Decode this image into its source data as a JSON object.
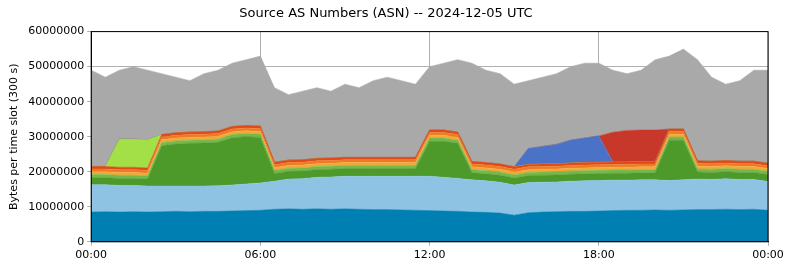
{
  "chart_data": {
    "type": "area",
    "stacked": true,
    "grid": true,
    "title": "Source AS Numbers (ASN) -- 2024-12-05 UTC",
    "y_label": "Bytes per time slot (300 s)",
    "xlim": [
      0,
      24
    ],
    "xticks": [
      {
        "value": 0,
        "label": "00:00"
      },
      {
        "value": 6,
        "label": "06:00"
      },
      {
        "value": 12,
        "label": "12:00"
      },
      {
        "value": 18,
        "label": "18:00"
      },
      {
        "value": 24,
        "label": "00:00"
      }
    ],
    "ylim": [
      0,
      60000000
    ],
    "yticks": [
      0,
      10000000,
      20000000,
      30000000,
      40000000,
      50000000,
      60000000
    ],
    "x": [
      0,
      0.5,
      1,
      1.5,
      2,
      2.5,
      3,
      3.5,
      4,
      4.5,
      5,
      5.5,
      6,
      6.5,
      7,
      7.5,
      8,
      8.5,
      9,
      9.5,
      10,
      10.5,
      11,
      11.5,
      12,
      12.5,
      13,
      13.5,
      14,
      14.5,
      15,
      15.5,
      16,
      16.5,
      17,
      17.5,
      18,
      18.5,
      19,
      19.5,
      20,
      20.5,
      21,
      21.5,
      22,
      22.5,
      23,
      23.5,
      24
    ],
    "series": [
      {
        "color": "#0080b2",
        "values": [
          8500000,
          8600000,
          8500000,
          8600000,
          8500000,
          8600000,
          8700000,
          8600000,
          8700000,
          8700000,
          8800000,
          8900000,
          9000000,
          9300000,
          9400000,
          9300000,
          9400000,
          9300000,
          9400000,
          9300000,
          9200000,
          9200000,
          9100000,
          9000000,
          8900000,
          8800000,
          8700000,
          8500000,
          8400000,
          8200000,
          7600000,
          8300000,
          8500000,
          8600000,
          8700000,
          8700000,
          8800000,
          8900000,
          9000000,
          9000000,
          9100000,
          9000000,
          9100000,
          9200000,
          9200000,
          9300000,
          9200000,
          9300000,
          9000000
        ]
      },
      {
        "color": "#8fc3e4",
        "values": [
          7800000,
          7700000,
          7600000,
          7500000,
          7400000,
          7300000,
          7200000,
          7300000,
          7200000,
          7300000,
          7400000,
          7600000,
          7800000,
          8000000,
          8500000,
          8700000,
          9000000,
          9200000,
          9300000,
          9400000,
          9500000,
          9500000,
          9600000,
          9700000,
          9800000,
          9600000,
          9400000,
          9200000,
          9000000,
          8800000,
          8600000,
          8600000,
          8500000,
          8500000,
          8600000,
          8700000,
          8700000,
          8700000,
          8600000,
          8700000,
          8600000,
          8500000,
          8600000,
          8700000,
          8600000,
          8700000,
          8600000,
          8500000,
          8200000
        ]
      },
      {
        "color": "#4d9a2a",
        "values": [
          2000000,
          2000000,
          2000000,
          2000000,
          2000000,
          11500000,
          12000000,
          12200000,
          12300000,
          12400000,
          13500000,
          13500000,
          13000000,
          2200000,
          2200000,
          2200000,
          2200000,
          2200000,
          2200000,
          2200000,
          2200000,
          2200000,
          2200000,
          2200000,
          10000000,
          10300000,
          10000000,
          2000000,
          2000000,
          2000000,
          2000000,
          2000000,
          2000000,
          2000000,
          2000000,
          2000000,
          2000000,
          2000000,
          2000000,
          2000000,
          2000000,
          11500000,
          11300000,
          2000000,
          2000000,
          2000000,
          2000000,
          2000000,
          2000000
        ]
      },
      {
        "color": "#77b84a",
        "values": [
          900000,
          900000,
          900000,
          900000,
          900000,
          900000,
          900000,
          900000,
          900000,
          900000,
          900000,
          900000,
          900000,
          900000,
          900000,
          900000,
          900000,
          900000,
          900000,
          900000,
          900000,
          900000,
          900000,
          900000,
          900000,
          900000,
          900000,
          900000,
          900000,
          900000,
          900000,
          900000,
          900000,
          900000,
          900000,
          900000,
          900000,
          900000,
          900000,
          900000,
          900000,
          900000,
          900000,
          900000,
          900000,
          900000,
          900000,
          900000,
          900000
        ]
      },
      {
        "color": "#f2a93b",
        "values": [
          800000,
          800000,
          800000,
          800000,
          800000,
          800000,
          800000,
          800000,
          800000,
          800000,
          800000,
          800000,
          800000,
          800000,
          800000,
          800000,
          800000,
          800000,
          800000,
          800000,
          800000,
          800000,
          800000,
          800000,
          800000,
          800000,
          800000,
          800000,
          800000,
          800000,
          800000,
          800000,
          800000,
          800000,
          800000,
          800000,
          800000,
          800000,
          800000,
          800000,
          800000,
          800000,
          800000,
          800000,
          800000,
          800000,
          800000,
          800000,
          800000
        ]
      },
      {
        "color": "#ee7b24",
        "values": [
          800000,
          800000,
          800000,
          800000,
          800000,
          800000,
          800000,
          800000,
          800000,
          800000,
          800000,
          800000,
          800000,
          800000,
          800000,
          800000,
          800000,
          800000,
          800000,
          800000,
          800000,
          800000,
          800000,
          800000,
          800000,
          800000,
          800000,
          800000,
          800000,
          800000,
          800000,
          800000,
          800000,
          800000,
          800000,
          800000,
          800000,
          800000,
          800000,
          800000,
          800000,
          800000,
          800000,
          800000,
          800000,
          800000,
          800000,
          800000,
          800000
        ]
      },
      {
        "color": "#e0491a",
        "values": [
          700000,
          700000,
          700000,
          700000,
          700000,
          700000,
          700000,
          700000,
          700000,
          700000,
          700000,
          700000,
          700000,
          700000,
          700000,
          700000,
          700000,
          700000,
          700000,
          700000,
          700000,
          700000,
          700000,
          700000,
          700000,
          700000,
          700000,
          700000,
          700000,
          700000,
          700000,
          700000,
          700000,
          700000,
          700000,
          700000,
          700000,
          700000,
          700000,
          700000,
          700000,
          700000,
          700000,
          700000,
          700000,
          700000,
          700000,
          700000,
          700000
        ]
      },
      {
        "color": "#a3e048",
        "values": [
          0,
          0,
          8000000,
          8000000,
          8000000,
          0,
          0,
          0,
          0,
          0,
          0,
          0,
          0,
          0,
          0,
          0,
          0,
          0,
          0,
          0,
          0,
          0,
          0,
          0,
          0,
          0,
          0,
          0,
          0,
          0,
          0,
          0,
          0,
          0,
          0,
          0,
          0,
          0,
          0,
          0,
          0,
          0,
          0,
          0,
          0,
          0,
          0,
          0,
          0
        ]
      },
      {
        "color": "#4a73c8",
        "values": [
          0,
          0,
          0,
          0,
          0,
          0,
          0,
          0,
          0,
          0,
          0,
          0,
          0,
          0,
          0,
          0,
          0,
          0,
          0,
          0,
          0,
          0,
          0,
          0,
          0,
          0,
          0,
          0,
          0,
          0,
          0,
          4500000,
          5000000,
          5500000,
          6500000,
          7000000,
          7500000,
          0,
          0,
          0,
          0,
          0,
          0,
          0,
          0,
          0,
          0,
          0,
          0
        ]
      },
      {
        "color": "#c8382a",
        "values": [
          0,
          0,
          0,
          0,
          0,
          0,
          0,
          0,
          0,
          0,
          0,
          0,
          0,
          0,
          0,
          0,
          0,
          0,
          0,
          0,
          0,
          0,
          0,
          0,
          0,
          0,
          0,
          0,
          0,
          0,
          0,
          0,
          0,
          0,
          0,
          0,
          0,
          8500000,
          9000000,
          9000000,
          9000000,
          0,
          0,
          0,
          0,
          0,
          0,
          0,
          0
        ]
      },
      {
        "color": "#a9a9a9",
        "values": [
          27500000,
          25500000,
          19700000,
          20700000,
          19900000,
          17400000,
          15900000,
          14700000,
          16600000,
          17400000,
          18100000,
          18800000,
          20000000,
          21300000,
          18700000,
          19600000,
          20200000,
          19100000,
          20900000,
          19900000,
          21900000,
          22900000,
          21900000,
          20900000,
          18100000,
          19100000,
          20700000,
          28100000,
          26400000,
          25800000,
          23600000,
          19400000,
          19800000,
          20200000,
          21000000,
          21400000,
          20800000,
          17700000,
          16200000,
          17100000,
          20100000,
          20800000,
          22800000,
          28900000,
          24000000,
          21800000,
          23000000,
          26000000,
          26600000
        ]
      }
    ]
  }
}
